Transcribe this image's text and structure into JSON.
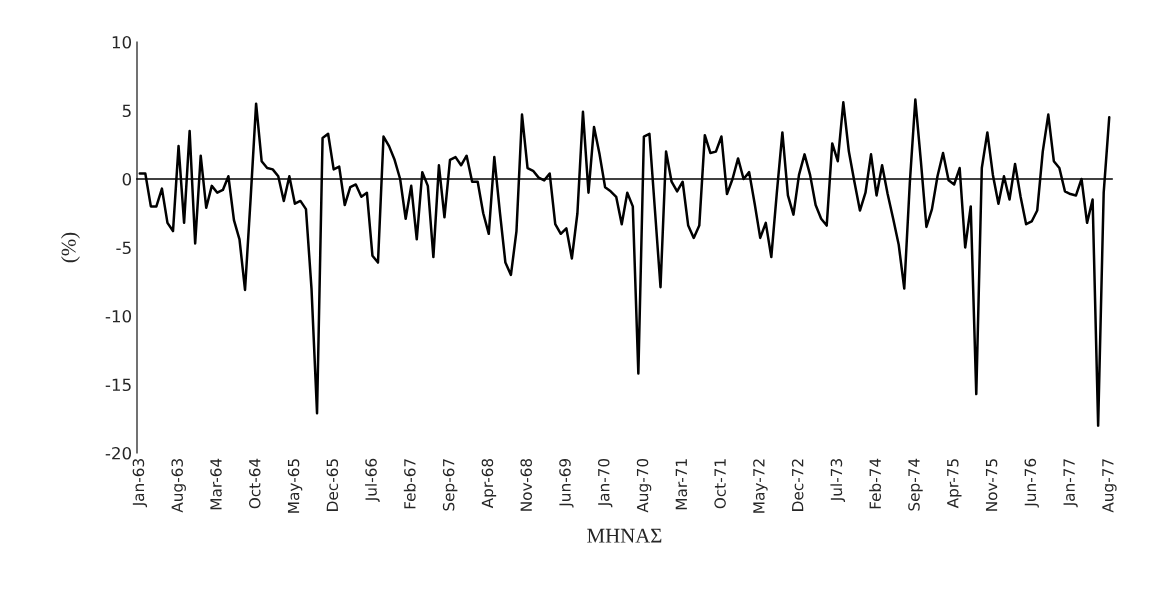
{
  "chart_data": {
    "type": "line",
    "xlabel": "ΜΗΝΑΣ",
    "ylabel": "(%)",
    "categories": [
      "Jan-63",
      null,
      null,
      null,
      null,
      null,
      null,
      "Aug-63",
      null,
      null,
      null,
      null,
      null,
      null,
      "Mar-64",
      null,
      null,
      null,
      null,
      null,
      null,
      "Oct-64",
      null,
      null,
      null,
      null,
      null,
      null,
      "May-65",
      null,
      null,
      null,
      null,
      null,
      null,
      "Dec-65",
      null,
      null,
      null,
      null,
      null,
      null,
      "Jul-66",
      null,
      null,
      null,
      null,
      null,
      null,
      "Feb-67",
      null,
      null,
      null,
      null,
      null,
      null,
      "Sep-67",
      null,
      null,
      null,
      null,
      null,
      null,
      "Apr-68",
      null,
      null,
      null,
      null,
      null,
      null,
      "Nov-68",
      null,
      null,
      null,
      null,
      null,
      null,
      "Jun-69",
      null,
      null,
      null,
      null,
      null,
      null,
      "Jan-70",
      null,
      null,
      null,
      null,
      null,
      null,
      "Aug-70",
      null,
      null,
      null,
      null,
      null,
      null,
      "Mar-71",
      null,
      null,
      null,
      null,
      null,
      null,
      "Oct-71",
      null,
      null,
      null,
      null,
      null,
      null,
      "May-72",
      null,
      null,
      null,
      null,
      null,
      null,
      "Dec-72",
      null,
      null,
      null,
      null,
      null,
      null,
      "Jul-73",
      null,
      null,
      null,
      null,
      null,
      null,
      "Feb-74",
      null,
      null,
      null,
      null,
      null,
      null,
      "Sep-74",
      null,
      null,
      null,
      null,
      null,
      null,
      "Apr-75",
      null,
      null,
      null,
      null,
      null,
      null,
      "Nov-75",
      null,
      null,
      null,
      null,
      null,
      null,
      "Jun-76",
      null,
      null,
      null,
      null,
      null,
      null,
      "Jan-77",
      null,
      null,
      null,
      null,
      null,
      null,
      "Aug-77"
    ],
    "series": [
      {
        "color": "#000000",
        "values": [
          0.4,
          0.4,
          -2.0,
          -2.0,
          -0.7,
          -3.2,
          -3.8,
          2.4,
          -3.2,
          3.5,
          -4.7,
          1.7,
          -2.1,
          -0.5,
          -1.0,
          -0.8,
          0.2,
          -3.0,
          -4.4,
          -8.1,
          -1.5,
          5.5,
          1.3,
          0.8,
          0.7,
          0.2,
          -1.6,
          0.2,
          -1.8,
          -1.6,
          -2.2,
          -8.0,
          -17.1,
          3.0,
          3.3,
          0.7,
          0.9,
          -1.9,
          -0.6,
          -0.4,
          -1.3,
          -1.0,
          -5.6,
          -6.1,
          3.1,
          2.4,
          1.4,
          0.0,
          -2.9,
          -0.5,
          -4.4,
          0.5,
          -0.5,
          -5.7,
          1.0,
          -2.8,
          1.4,
          1.6,
          1.0,
          1.7,
          -0.2,
          -0.2,
          -2.5,
          -4.0,
          1.6,
          -2.4,
          -6.1,
          -7.0,
          -3.8,
          4.7,
          0.8,
          0.6,
          0.1,
          -0.1,
          0.4,
          -3.3,
          -4.0,
          -3.6,
          -5.8,
          -2.5,
          4.9,
          -1.0,
          3.8,
          1.8,
          -0.6,
          -0.9,
          -1.3,
          -3.3,
          -1.0,
          -2.0,
          -14.2,
          3.1,
          3.3,
          -2.3,
          -7.9,
          2.0,
          -0.2,
          -0.9,
          -0.2,
          -3.4,
          -4.3,
          -3.4,
          3.2,
          1.9,
          2.0,
          3.1,
          -1.1,
          0.0,
          1.5,
          0.0,
          0.5,
          -1.8,
          -4.3,
          -3.2,
          -5.7,
          -1.0,
          3.4,
          -1.2,
          -2.6,
          0.3,
          1.8,
          0.3,
          -1.9,
          -2.9,
          -3.4,
          2.6,
          1.3,
          5.6,
          2.0,
          -0.2,
          -2.3,
          -1.0,
          1.8,
          -1.2,
          1.0,
          -1.1,
          -2.9,
          -4.8,
          -8.0,
          -0.3,
          5.8,
          1.3,
          -3.5,
          -2.2,
          0.2,
          1.9,
          -0.1,
          -0.4,
          0.8,
          -5.0,
          -2.0,
          -15.7,
          0.8,
          3.4,
          0.3,
          -1.8,
          0.2,
          -1.5,
          1.1,
          -1.3,
          -3.3,
          -3.1,
          -2.3,
          2.0,
          4.7,
          1.3,
          0.8,
          -0.9,
          -1.1,
          -1.2,
          0.0,
          -3.2,
          -1.5,
          -18.0,
          -1.0,
          4.5
        ]
      }
    ],
    "ylim": [
      -20,
      10
    ],
    "yticks": [
      -20,
      -15,
      -10,
      -5,
      0,
      5,
      10
    ],
    "legend": false,
    "marker": "none",
    "line_style": "solid"
  }
}
